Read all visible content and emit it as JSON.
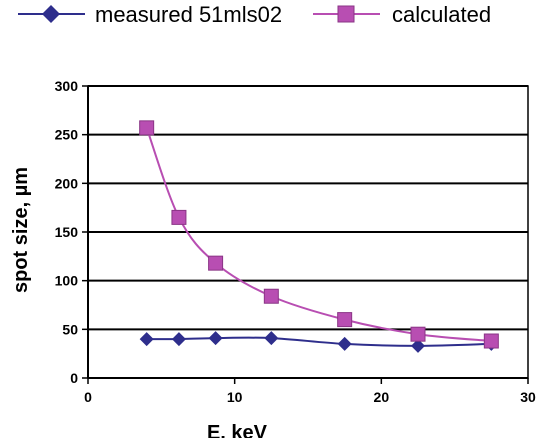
{
  "chart_data": {
    "type": "line",
    "xlabel": "E, keV",
    "ylabel": "spot size, µm",
    "xlim": [
      0,
      30
    ],
    "ylim": [
      0,
      300
    ],
    "xticks": [
      0,
      10,
      20,
      30
    ],
    "yticks": [
      0,
      50,
      100,
      150,
      200,
      250,
      300
    ],
    "xtick_labels": [
      "0",
      "10",
      "20",
      "30"
    ],
    "ytick_labels": [
      "0",
      "50",
      "100",
      "150",
      "200",
      "250",
      "300"
    ],
    "grid": "horizontal",
    "legend_position": "top",
    "series": [
      {
        "name": "measured 51mls02",
        "color": "#2e2e8c",
        "marker": "diamond",
        "x": [
          4,
          6.2,
          8.7,
          12.5,
          17.5,
          22.5,
          27.5
        ],
        "y": [
          40,
          40,
          41,
          41,
          35,
          33,
          35
        ]
      },
      {
        "name": "calculated",
        "color": "#b84eb2",
        "marker": "square",
        "x": [
          4,
          6.2,
          8.7,
          12.5,
          17.5,
          22.5,
          27.5
        ],
        "y": [
          257,
          165,
          118,
          84,
          60,
          45,
          38
        ]
      }
    ]
  }
}
